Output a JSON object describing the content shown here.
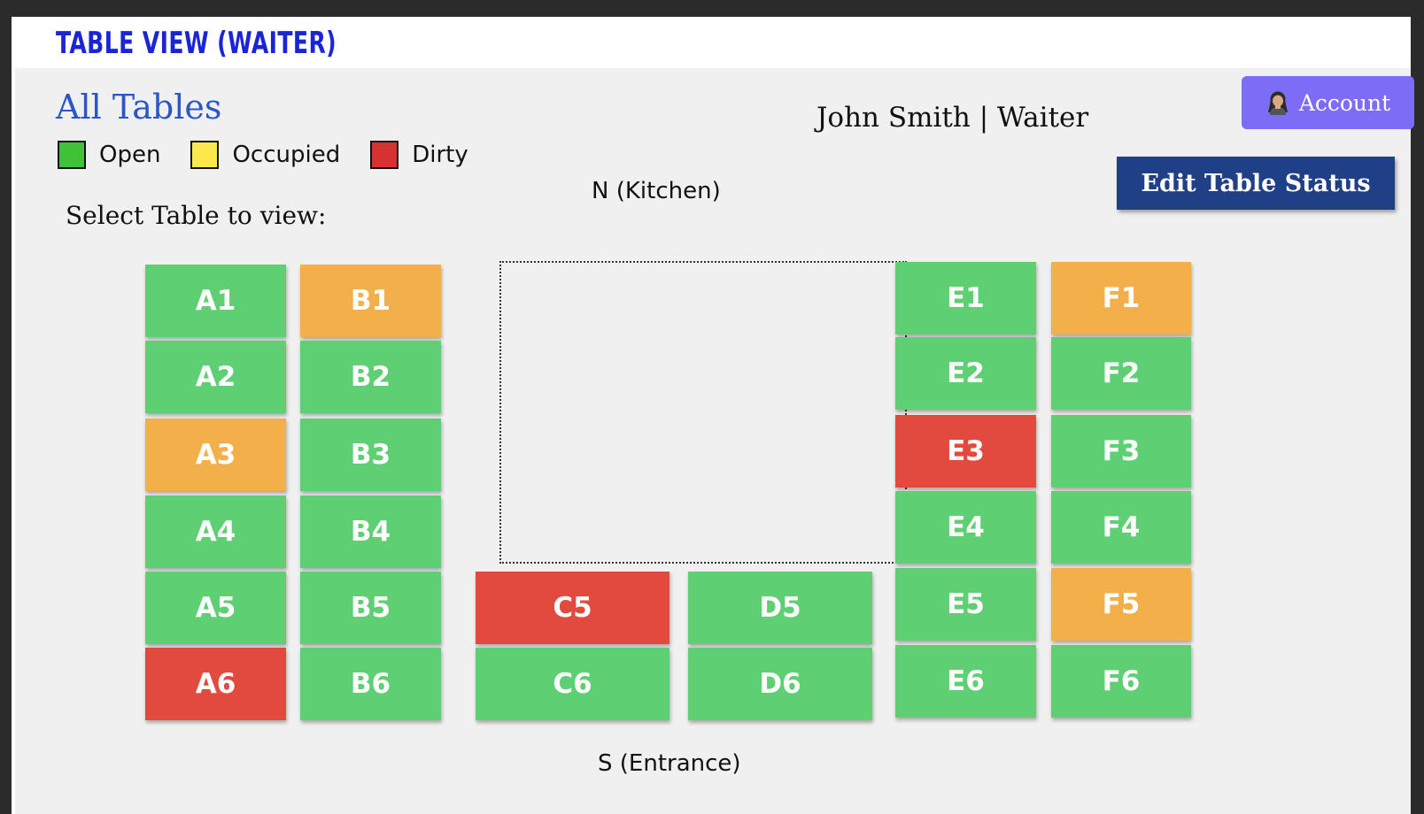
{
  "app": {
    "title": "TABLE VIEW (WAITER)"
  },
  "header": {
    "section_title": "All Tables",
    "user_label": "John Smith | Waiter",
    "account_label": "Account",
    "account_icon": "user-avatar-icon",
    "edit_status_label": "Edit Table Status"
  },
  "legend": [
    {
      "label": "Open",
      "color": "#3fc237"
    },
    {
      "label": "Occupied",
      "color": "#fbe94c"
    },
    {
      "label": "Dirty",
      "color": "#d63232"
    }
  ],
  "prompt": "Select Table to view:",
  "compass": {
    "north": "N (Kitchen)",
    "south": "S (Entrance)"
  },
  "status_colors": {
    "open": "#5fcf73",
    "occupied": "#f3b04a",
    "dirty": "#e34a3e"
  },
  "tables": [
    {
      "id": "A1",
      "status": "open"
    },
    {
      "id": "A2",
      "status": "open"
    },
    {
      "id": "A3",
      "status": "occupied"
    },
    {
      "id": "A4",
      "status": "open"
    },
    {
      "id": "A5",
      "status": "open"
    },
    {
      "id": "A6",
      "status": "dirty"
    },
    {
      "id": "B1",
      "status": "occupied"
    },
    {
      "id": "B2",
      "status": "open"
    },
    {
      "id": "B3",
      "status": "open"
    },
    {
      "id": "B4",
      "status": "open"
    },
    {
      "id": "B5",
      "status": "open"
    },
    {
      "id": "B6",
      "status": "open"
    },
    {
      "id": "C5",
      "status": "dirty"
    },
    {
      "id": "C6",
      "status": "open"
    },
    {
      "id": "D5",
      "status": "open"
    },
    {
      "id": "D6",
      "status": "open"
    },
    {
      "id": "E1",
      "status": "open"
    },
    {
      "id": "E2",
      "status": "open"
    },
    {
      "id": "E3",
      "status": "dirty"
    },
    {
      "id": "E4",
      "status": "open"
    },
    {
      "id": "E5",
      "status": "open"
    },
    {
      "id": "E6",
      "status": "open"
    },
    {
      "id": "F1",
      "status": "occupied"
    },
    {
      "id": "F2",
      "status": "open"
    },
    {
      "id": "F3",
      "status": "open"
    },
    {
      "id": "F4",
      "status": "open"
    },
    {
      "id": "F5",
      "status": "occupied"
    },
    {
      "id": "F6",
      "status": "open"
    }
  ]
}
